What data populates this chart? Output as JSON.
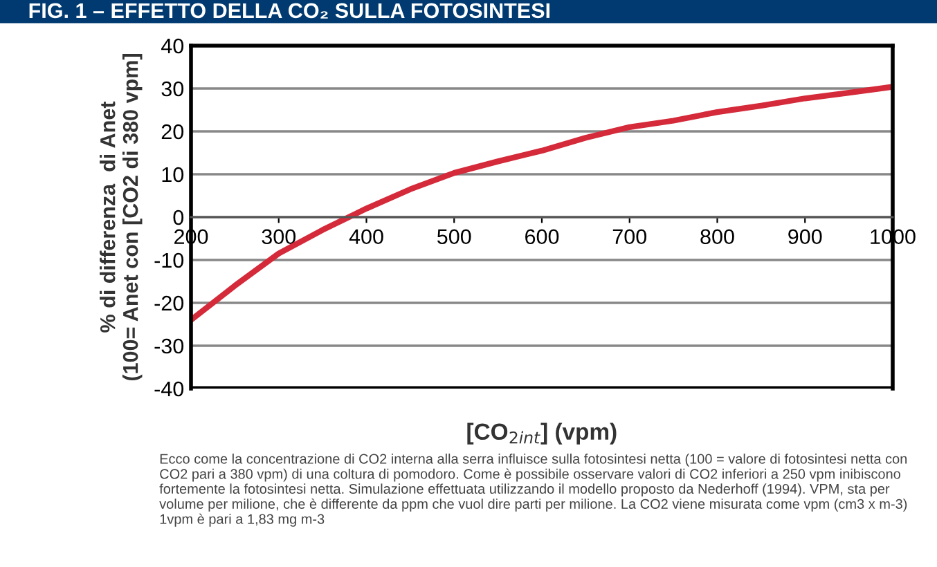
{
  "chart_data": {
    "type": "line",
    "title": "FIG. 1 – EFFETTO DELLA CO₂ SULLA FOTOSINTESI",
    "xlabel": "[CO$_{2int}$] (vpm)",
    "ylabel": "% di differenza  di Anet\n(100= Anet con [CO2 di 380 vpm]",
    "x": [
      200,
      250,
      300,
      350,
      380,
      400,
      450,
      500,
      550,
      600,
      650,
      700,
      750,
      800,
      850,
      900,
      950,
      1000
    ],
    "series": [
      {
        "color": "#d42a3a",
        "values": [
          -24,
          -16,
          -8.5,
          -3,
          0,
          2,
          6.5,
          10.3,
          13,
          15.5,
          18.5,
          21,
          22.5,
          24.5,
          26,
          27.7,
          29,
          30.4
        ]
      }
    ],
    "xlim": [
      200,
      1000
    ],
    "xticks": [
      200,
      300,
      400,
      500,
      600,
      700,
      800,
      900,
      1000
    ],
    "ylim": [
      -40,
      40
    ],
    "yticks": [
      -40,
      -30,
      -20,
      -10,
      0,
      10,
      20,
      30,
      40
    ],
    "grid": "y",
    "legend": false,
    "marker": "none",
    "line_style": "solid",
    "annotations": [
      "Ecco come la concentrazione di CO2 interna alla serra influisce sulla fotosintesi netta (100 = valore di fotosintesi netta con CO2 pari a 380 vpm) di una coltura di pomodoro. Come è possibile osservare valori di CO2 inferiori a 250 vpm inibiscono fortemente la fotosintesi netta. Simulazione effettuata utilizzando il modello proposto da Nederhoff (1994). VPM, sta per volume per milione, che è differente da ppm che vuol dire parti per milione. La CO2 viene misurata come vpm (cm3 x m-3) 1vpm è pari a 1,83 mg m-3"
    ]
  }
}
